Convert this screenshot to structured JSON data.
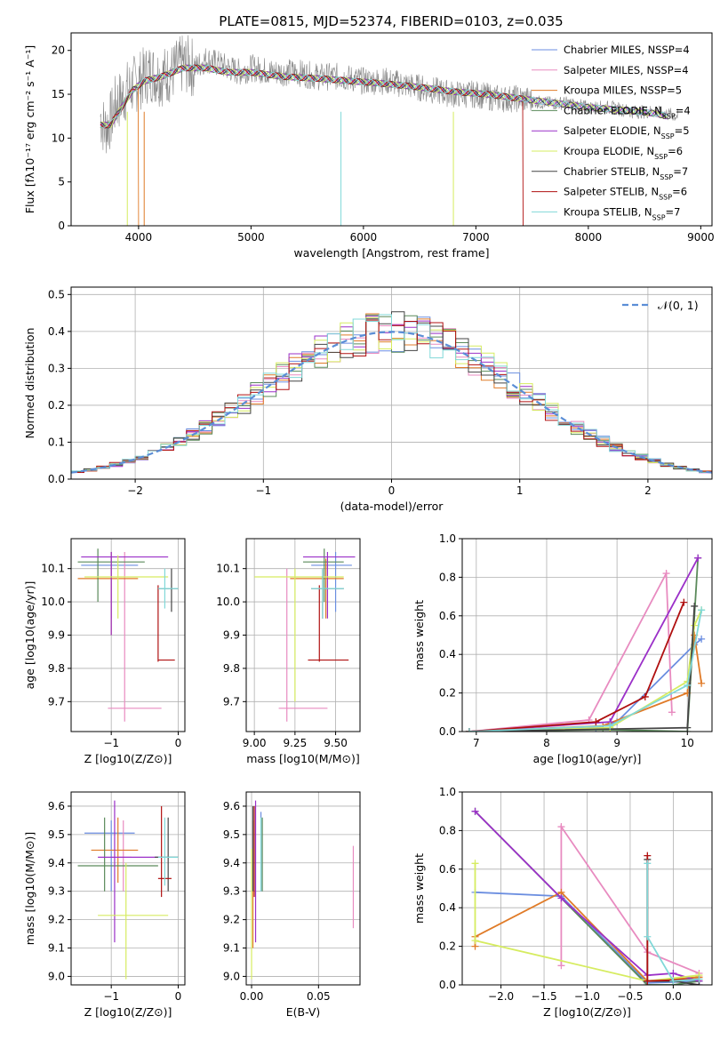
{
  "title": "PLATE=0815, MJD=52374, FIBERID=0103, z=0.035",
  "models": [
    {
      "name": "Chabrier MILES",
      "nssp": "4",
      "color": "#6b8ee0"
    },
    {
      "name": "Salpeter MILES",
      "nssp": "4",
      "color": "#e88bc0"
    },
    {
      "name": "Kroupa MILES",
      "nssp": "5",
      "color": "#e07b28"
    },
    {
      "name": "Chabrier ELODIE",
      "nssp": "4",
      "color": "#5a8a5a"
    },
    {
      "name": "Salpeter ELODIE",
      "nssp": "5",
      "color": "#9b30c8"
    },
    {
      "name": "Kroupa ELODIE",
      "nssp": "6",
      "color": "#d6ec60"
    },
    {
      "name": "Chabrier STELIB",
      "nssp": "7",
      "color": "#444444"
    },
    {
      "name": "Salpeter STELIB",
      "nssp": "6",
      "color": "#b01010"
    },
    {
      "name": "Kroupa STELIB",
      "nssp": "7",
      "color": "#80d8d8"
    }
  ],
  "chart_data": [
    {
      "id": "spectrum",
      "type": "line",
      "xlabel": "wavelength [Angstrom, rest frame]",
      "ylabel": "Flux [fλ10⁻¹⁷ erg cm⁻² s⁻¹ A⁻¹]",
      "xlim": [
        3400,
        9100
      ],
      "ylim": [
        0,
        22
      ],
      "xticks": [
        4000,
        5000,
        6000,
        7000,
        8000,
        9000
      ],
      "yticks": [
        0,
        5,
        10,
        15,
        20
      ],
      "legend": "top-right",
      "data_color": "#888888",
      "data_x": [
        3660,
        3700,
        3750,
        3800,
        3850,
        3900,
        3950,
        4000,
        4100,
        4200,
        4300,
        4400,
        4500,
        4600,
        4700,
        4800,
        4900,
        5000,
        5200,
        5400,
        5600,
        5800,
        6000,
        6200,
        6400,
        6600,
        6800,
        7000,
        7200,
        7400,
        7600,
        7800,
        8000,
        8200,
        8400,
        8600,
        8800
      ],
      "data_y": [
        12.5,
        11.0,
        12.0,
        14.0,
        14.5,
        15.5,
        16.0,
        16.5,
        17.5,
        17.0,
        17.5,
        18.5,
        18.0,
        19.0,
        18.5,
        18.0,
        17.5,
        18.0,
        17.5,
        17.5,
        17.0,
        17.0,
        16.5,
        16.5,
        16.0,
        15.5,
        15.0,
        15.0,
        14.5,
        14.5,
        14.0,
        14.0,
        13.5,
        13.5,
        13.0,
        13.0,
        12.5
      ],
      "model_x": [
        3660,
        3750,
        3850,
        3950,
        4050,
        4200,
        4400,
        4600,
        4800,
        5000,
        5300,
        5600,
        5900,
        6200,
        6500,
        6800,
        7100,
        7400,
        7700,
        8000,
        8300,
        8600,
        8700
      ],
      "model_y": [
        11.5,
        11.5,
        13.5,
        15.5,
        16.5,
        17.0,
        18.0,
        18.0,
        17.5,
        17.5,
        17.0,
        16.8,
        16.5,
        16.2,
        15.8,
        15.3,
        15.0,
        14.5,
        14.0,
        13.5,
        13.2,
        12.8,
        12.5
      ],
      "model_xmax": [
        8700,
        8700,
        4000,
        8700,
        8700,
        8700,
        8700,
        7420,
        8700
      ]
    },
    {
      "id": "residuals",
      "type": "histogram",
      "xlabel": "(data-model)/error",
      "ylabel": "Normed distribution",
      "xlim": [
        -2.5,
        2.5
      ],
      "ylim": [
        0,
        0.52
      ],
      "xticks": [
        -2,
        -1,
        0,
        1,
        2
      ],
      "yticks": [
        0,
        0.1,
        0.2,
        0.3,
        0.4,
        0.5
      ],
      "legend_label": "𝒩(0, 1)",
      "legend_color": "#5b8ed6",
      "bin_width": 0.1,
      "xmin": -2.5
    },
    {
      "id": "age-vs-Z",
      "type": "errorbar",
      "xlabel": "Z [log10(Z/Z⊙)]",
      "ylabel": "age  [log10(age/yr)]",
      "xlim": [
        -1.6,
        0.1
      ],
      "ylim": [
        9.61,
        10.19
      ],
      "xticks": [
        -1,
        0
      ],
      "yticks": [
        9.7,
        9.8,
        9.9,
        10.0,
        10.1
      ]
    },
    {
      "id": "age-vs-mass",
      "type": "errorbar",
      "xlabel": "mass [log10(M/M⊙)]",
      "ylabel": "",
      "xlim": [
        8.95,
        9.65
      ],
      "ylim": [
        9.61,
        10.19
      ],
      "xticks": [
        9.0,
        9.25,
        9.5
      ],
      "yticks": [
        9.7,
        9.8,
        9.9,
        10.0,
        10.1
      ]
    },
    {
      "id": "weight-vs-age",
      "type": "line",
      "xlabel": "age  [log10(age/yr)]",
      "ylabel": "mass weight",
      "xlim": [
        6.8,
        10.35
      ],
      "ylim": [
        0,
        1.0
      ],
      "xticks": [
        7,
        8,
        9,
        10
      ],
      "yticks": [
        0,
        0.2,
        0.4,
        0.6,
        0.8,
        1.0
      ]
    },
    {
      "id": "mass-vs-Z",
      "type": "errorbar",
      "xlabel": "Z [log10(Z/Z⊙)]",
      "ylabel": "mass [log10(M/M⊙)]",
      "xlim": [
        -1.6,
        0.1
      ],
      "ylim": [
        8.97,
        9.65
      ],
      "xticks": [
        -1,
        0
      ],
      "yticks": [
        9.0,
        9.1,
        9.2,
        9.3,
        9.4,
        9.5,
        9.6
      ]
    },
    {
      "id": "mass-vs-ebv",
      "type": "errorbar",
      "xlabel": "E(B-V)",
      "ylabel": "",
      "xlim": [
        -0.004,
        0.081
      ],
      "ylim": [
        8.97,
        9.65
      ],
      "xticks": [
        0.0,
        0.05
      ],
      "yticks": [
        9.0,
        9.1,
        9.2,
        9.3,
        9.4,
        9.5,
        9.6
      ]
    },
    {
      "id": "weight-vs-Z",
      "type": "line",
      "xlabel": "Z [log10(Z/Z⊙)]",
      "ylabel": "mass weight",
      "xlim": [
        -2.45,
        0.45
      ],
      "ylim": [
        0,
        1.0
      ],
      "xticks": [
        -2.0,
        -1.5,
        -1.0,
        -0.5,
        0.0
      ],
      "yticks": [
        0,
        0.2,
        0.4,
        0.6,
        0.8,
        1.0
      ]
    }
  ],
  "errorbars": {
    "ageZ": [
      {
        "m": 0,
        "x": -1.0,
        "y": 10.11,
        "xe": [
          -1.45,
          -0.6
        ],
        "ye": [
          9.95,
          10.15
        ]
      },
      {
        "m": 1,
        "x": -0.8,
        "y": 9.68,
        "xe": [
          -1.05,
          -0.25
        ],
        "ye": [
          9.64,
          10.15
        ]
      },
      {
        "m": 2,
        "x": -1.0,
        "y": 10.07,
        "xe": [
          -1.5,
          -0.6
        ],
        "ye": [
          9.9,
          10.15
        ]
      },
      {
        "m": 3,
        "x": -1.2,
        "y": 10.12,
        "xe": [
          -1.5,
          -0.5
        ],
        "ye": [
          10.0,
          10.16
        ]
      },
      {
        "m": 4,
        "x": -1.0,
        "y": 10.135,
        "xe": [
          -1.45,
          -0.15
        ],
        "ye": [
          9.9,
          10.15
        ]
      },
      {
        "m": 5,
        "x": -0.9,
        "y": 10.075,
        "xe": [
          -1.4,
          -0.15
        ],
        "ye": [
          9.95,
          10.14
        ]
      },
      {
        "m": 6,
        "x": -0.1,
        "y": 10.04,
        "xe": [
          -0.3,
          0.0
        ],
        "ye": [
          9.97,
          10.1
        ]
      },
      {
        "m": 7,
        "x": -0.3,
        "y": 9.825,
        "xe": [
          -0.3,
          -0.05
        ],
        "ye": [
          9.82,
          10.05
        ]
      },
      {
        "m": 8,
        "x": -0.2,
        "y": 10.04,
        "xe": [
          -0.3,
          0.0
        ],
        "ye": [
          9.98,
          10.1
        ]
      }
    ],
    "ageM": [
      {
        "m": 0,
        "x": 9.5,
        "y": 10.11,
        "xe": [
          9.35,
          9.6
        ],
        "ye": [
          9.97,
          10.15
        ]
      },
      {
        "m": 1,
        "x": 9.2,
        "y": 9.68,
        "xe": [
          9.15,
          9.45
        ],
        "ye": [
          9.64,
          10.1
        ]
      },
      {
        "m": 2,
        "x": 9.44,
        "y": 10.07,
        "xe": [
          9.22,
          9.55
        ],
        "ye": [
          9.95,
          10.13
        ]
      },
      {
        "m": 3,
        "x": 9.43,
        "y": 10.12,
        "xe": [
          9.3,
          9.55
        ],
        "ye": [
          10.0,
          10.16
        ]
      },
      {
        "m": 4,
        "x": 9.45,
        "y": 10.135,
        "xe": [
          9.3,
          9.62
        ],
        "ye": [
          9.95,
          10.15
        ]
      },
      {
        "m": 5,
        "x": 9.25,
        "y": 10.075,
        "xe": [
          9.0,
          9.55
        ],
        "ye": [
          9.7,
          10.1
        ]
      },
      {
        "m": 6,
        "x": 9.42,
        "y": 10.04,
        "xe": [
          9.35,
          9.55
        ],
        "ye": [
          9.95,
          10.1
        ]
      },
      {
        "m": 7,
        "x": 9.4,
        "y": 9.825,
        "xe": [
          9.33,
          9.58
        ],
        "ye": [
          9.82,
          10.05
        ]
      },
      {
        "m": 8,
        "x": 9.42,
        "y": 10.04,
        "xe": [
          9.35,
          9.55
        ],
        "ye": [
          9.95,
          10.1
        ]
      }
    ],
    "massZ": [
      {
        "m": 0,
        "x": -1.0,
        "y": 9.505,
        "xe": [
          -1.4,
          -0.65
        ],
        "ye": [
          9.3,
          9.55
        ]
      },
      {
        "m": 1,
        "x": -0.82,
        "y": 9.42,
        "xe": [
          -0.9,
          -0.7
        ],
        "ye": [
          9.3,
          9.55
        ]
      },
      {
        "m": 2,
        "x": -0.9,
        "y": 9.445,
        "xe": [
          -1.3,
          -0.6
        ],
        "ye": [
          9.33,
          9.56
        ]
      },
      {
        "m": 3,
        "x": -1.1,
        "y": 9.39,
        "xe": [
          -1.5,
          -0.3
        ],
        "ye": [
          9.3,
          9.56
        ]
      },
      {
        "m": 4,
        "x": -0.95,
        "y": 9.42,
        "xe": [
          -1.2,
          -0.3
        ],
        "ye": [
          9.12,
          9.62
        ]
      },
      {
        "m": 5,
        "x": -0.78,
        "y": 9.215,
        "xe": [
          -1.2,
          -0.15
        ],
        "ye": [
          8.99,
          9.4
        ]
      },
      {
        "m": 6,
        "x": -0.15,
        "y": 9.42,
        "xe": [
          -0.35,
          0.0
        ],
        "ye": [
          9.3,
          9.56
        ]
      },
      {
        "m": 7,
        "x": -0.25,
        "y": 9.345,
        "xe": [
          -0.3,
          -0.1
        ],
        "ye": [
          9.28,
          9.6
        ]
      },
      {
        "m": 8,
        "x": -0.2,
        "y": 9.42,
        "xe": [
          -0.3,
          0.0
        ],
        "ye": [
          9.32,
          9.56
        ]
      }
    ],
    "massE": [
      {
        "m": 0,
        "x": 0.007,
        "y": 9.4,
        "ye": [
          9.3,
          9.58
        ]
      },
      {
        "m": 1,
        "x": 0.076,
        "y": 9.3,
        "ye": [
          9.17,
          9.46
        ]
      },
      {
        "m": 2,
        "x": 0.001,
        "y": 9.3,
        "ye": [
          9.1,
          9.55
        ]
      },
      {
        "m": 3,
        "x": 0.008,
        "y": 9.4,
        "ye": [
          9.3,
          9.56
        ]
      },
      {
        "m": 4,
        "x": 0.003,
        "y": 9.4,
        "ye": [
          9.12,
          9.62
        ]
      },
      {
        "m": 5,
        "x": 0.0,
        "y": 9.2,
        "ye": [
          8.99,
          9.45
        ]
      },
      {
        "m": 6,
        "x": 0.001,
        "y": 9.5,
        "ye": [
          9.3,
          9.6
        ]
      },
      {
        "m": 7,
        "x": 0.002,
        "y": 9.4,
        "ye": [
          9.28,
          9.6
        ]
      },
      {
        "m": 8,
        "x": 0.007,
        "y": 9.4,
        "ye": [
          9.3,
          9.56
        ]
      }
    ]
  },
  "weights": {
    "age": [
      [
        [
          6.9,
          0.0
        ],
        [
          8.7,
          0.02
        ],
        [
          9.0,
          0.05
        ],
        [
          10.1,
          0.45
        ],
        [
          10.2,
          0.48
        ]
      ],
      [
        [
          6.9,
          0.0
        ],
        [
          8.6,
          0.06
        ],
        [
          9.7,
          0.82
        ],
        [
          9.78,
          0.1
        ]
      ],
      [
        [
          6.9,
          0.0
        ],
        [
          8.8,
          0.03
        ],
        [
          10.0,
          0.2
        ],
        [
          10.1,
          0.5
        ],
        [
          10.2,
          0.25
        ]
      ],
      [
        [
          6.9,
          0.0
        ],
        [
          8.8,
          0.01
        ],
        [
          10.0,
          0.0
        ],
        [
          10.15,
          0.9
        ]
      ],
      [
        [
          6.9,
          0.0
        ],
        [
          8.9,
          0.05
        ],
        [
          10.15,
          0.9
        ]
      ],
      [
        [
          6.9,
          0.0
        ],
        [
          8.9,
          0.02
        ],
        [
          10.0,
          0.26
        ],
        [
          10.1,
          0.55
        ],
        [
          10.2,
          0.63
        ]
      ],
      [
        [
          6.9,
          0.0
        ],
        [
          10.0,
          0.02
        ],
        [
          10.1,
          0.65
        ]
      ],
      [
        [
          6.9,
          0.0
        ],
        [
          8.7,
          0.05
        ],
        [
          9.4,
          0.18
        ],
        [
          9.95,
          0.67
        ]
      ],
      [
        [
          6.9,
          0.0
        ],
        [
          8.9,
          0.03
        ],
        [
          10.0,
          0.24
        ],
        [
          10.2,
          0.63
        ]
      ]
    ],
    "Z": [
      [
        [
          -2.3,
          0.48
        ],
        [
          -1.3,
          0.46
        ],
        [
          -0.3,
          0.01
        ],
        [
          0.3,
          0.02
        ]
      ],
      [
        [
          -1.3,
          0.1
        ],
        [
          -1.3,
          0.82
        ],
        [
          -0.3,
          0.17
        ],
        [
          0.3,
          0.06
        ]
      ],
      [
        [
          -2.3,
          0.2
        ],
        [
          -2.3,
          0.25
        ],
        [
          -1.3,
          0.48
        ],
        [
          -0.3,
          0.02
        ],
        [
          0.3,
          0.04
        ]
      ],
      [
        [
          -2.3,
          0.9
        ],
        [
          -0.3,
          0.0
        ],
        [
          0.0,
          0.0
        ],
        [
          0.3,
          0.02
        ]
      ],
      [
        [
          -2.3,
          0.9
        ],
        [
          -1.3,
          0.45
        ],
        [
          -0.3,
          0.05
        ],
        [
          0.0,
          0.06
        ],
        [
          0.3,
          0.02
        ]
      ],
      [
        [
          -2.3,
          0.63
        ],
        [
          -2.3,
          0.23
        ],
        [
          -0.3,
          0.02
        ],
        [
          0.3,
          0.05
        ]
      ],
      [
        [
          -0.3,
          0.65
        ],
        [
          -0.3,
          0.02
        ],
        [
          0.0,
          0.02
        ],
        [
          0.3,
          0.0
        ]
      ],
      [
        [
          -0.3,
          0.67
        ],
        [
          -0.3,
          0.02
        ],
        [
          0.3,
          0.03
        ]
      ],
      [
        [
          -0.3,
          0.63
        ],
        [
          -0.3,
          0.25
        ],
        [
          0.0,
          0.02
        ],
        [
          0.3,
          0.03
        ]
      ]
    ]
  }
}
